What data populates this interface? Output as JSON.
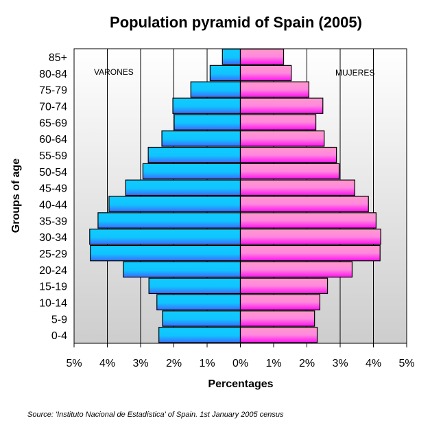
{
  "chart_data": {
    "type": "bar",
    "orientation": "horizontal-pyramid",
    "title": "Population pyramid of Spain (2005)",
    "xlabel": "Percentages",
    "ylabel": "Groups of age",
    "xlim": [
      -5,
      5
    ],
    "xtick_labels": [
      "5%",
      "4%",
      "3%",
      "2%",
      "1%",
      "0%",
      "1%",
      "2%",
      "3%",
      "4%",
      "5%"
    ],
    "grid": true,
    "categories": [
      "85+",
      "80-84",
      "75-79",
      "70-74",
      "65-69",
      "60-64",
      "55-59",
      "50-54",
      "45-49",
      "40-44",
      "35-39",
      "30-34",
      "25-29",
      "20-24",
      "15-19",
      "10-14",
      "5-9",
      "0-4"
    ],
    "series": [
      {
        "name": "VARONES",
        "side": "left",
        "color": "#1ec8ff",
        "values": [
          0.54,
          0.91,
          1.49,
          2.03,
          1.99,
          2.36,
          2.77,
          2.93,
          3.45,
          3.95,
          4.28,
          4.53,
          4.51,
          3.52,
          2.75,
          2.51,
          2.34,
          2.45
        ]
      },
      {
        "name": "MUJERES",
        "side": "right",
        "color": "#ff66dd",
        "values": [
          1.3,
          1.53,
          2.06,
          2.48,
          2.27,
          2.52,
          2.89,
          2.97,
          3.44,
          3.85,
          4.08,
          4.22,
          4.2,
          3.36,
          2.62,
          2.39,
          2.23,
          2.31
        ]
      }
    ],
    "source": "Source: 'Instituto Nacional de Estadística' of Spain. 1st January 2005 census"
  }
}
